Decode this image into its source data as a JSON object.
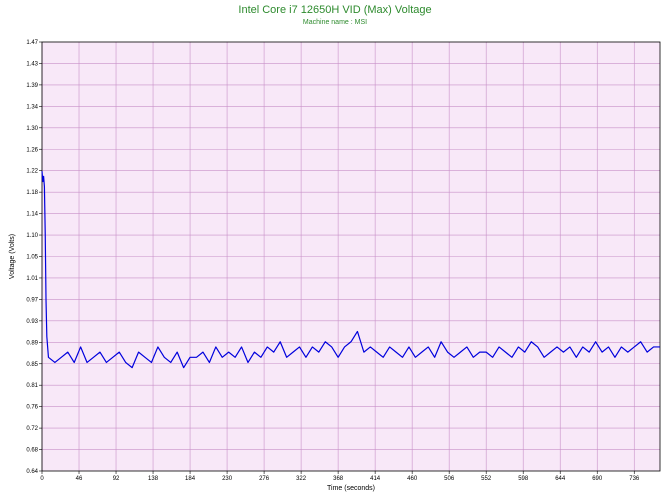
{
  "chart_data": {
    "type": "line",
    "title": "Intel Core i7 12650H VID (Max) Voltage",
    "subtitle": "Machine name : MSI",
    "xlabel": "Time (seconds)",
    "ylabel": "Voltage (Volts)",
    "xlim": [
      0,
      768
    ],
    "ylim": [
      0.64,
      1.47
    ],
    "x_ticks": [
      "0",
      "46",
      "92",
      "138",
      "184",
      "230",
      "276",
      "322",
      "368",
      "414",
      "460",
      "506",
      "552",
      "598",
      "644",
      "690",
      "736"
    ],
    "y_ticks": [
      "0.64",
      "0.68",
      "0.72",
      "0.76",
      "0.81",
      "0.85",
      "0.89",
      "0.93",
      "0.97",
      "1.01",
      "1.05",
      "1.10",
      "1.14",
      "1.18",
      "1.22",
      "1.26",
      "1.30",
      "1.34",
      "1.39",
      "1.43",
      "1.47"
    ],
    "grid": true,
    "colors": {
      "line": "#0000dd",
      "plot_bg": "#f8e8f8",
      "grid": "#c890c8",
      "title": "#2e8b2e"
    },
    "series": [
      {
        "sampling_interval_s": 8,
        "points": [
          [
            0,
            1.22
          ],
          [
            1,
            1.2
          ],
          [
            2,
            1.21
          ],
          [
            3,
            1.19
          ],
          [
            4,
            1.1
          ],
          [
            5,
            0.97
          ],
          [
            6,
            0.9
          ],
          [
            8,
            0.86
          ],
          [
            16,
            0.85
          ],
          [
            24,
            0.86
          ],
          [
            32,
            0.87
          ],
          [
            40,
            0.85
          ],
          [
            48,
            0.88
          ],
          [
            56,
            0.85
          ],
          [
            64,
            0.86
          ],
          [
            72,
            0.87
          ],
          [
            80,
            0.85
          ],
          [
            88,
            0.86
          ],
          [
            96,
            0.87
          ],
          [
            104,
            0.85
          ],
          [
            112,
            0.84
          ],
          [
            120,
            0.87
          ],
          [
            128,
            0.86
          ],
          [
            136,
            0.85
          ],
          [
            144,
            0.88
          ],
          [
            152,
            0.86
          ],
          [
            160,
            0.85
          ],
          [
            168,
            0.87
          ],
          [
            176,
            0.84
          ],
          [
            184,
            0.86
          ],
          [
            192,
            0.86
          ],
          [
            200,
            0.87
          ],
          [
            208,
            0.85
          ],
          [
            216,
            0.88
          ],
          [
            224,
            0.86
          ],
          [
            232,
            0.87
          ],
          [
            240,
            0.86
          ],
          [
            248,
            0.88
          ],
          [
            256,
            0.85
          ],
          [
            264,
            0.87
          ],
          [
            272,
            0.86
          ],
          [
            280,
            0.88
          ],
          [
            288,
            0.87
          ],
          [
            296,
            0.89
          ],
          [
            304,
            0.86
          ],
          [
            312,
            0.87
          ],
          [
            320,
            0.88
          ],
          [
            328,
            0.86
          ],
          [
            336,
            0.88
          ],
          [
            344,
            0.87
          ],
          [
            352,
            0.89
          ],
          [
            360,
            0.88
          ],
          [
            368,
            0.86
          ],
          [
            376,
            0.88
          ],
          [
            384,
            0.89
          ],
          [
            392,
            0.91
          ],
          [
            400,
            0.87
          ],
          [
            408,
            0.88
          ],
          [
            416,
            0.87
          ],
          [
            424,
            0.86
          ],
          [
            432,
            0.88
          ],
          [
            440,
            0.87
          ],
          [
            448,
            0.86
          ],
          [
            456,
            0.88
          ],
          [
            464,
            0.86
          ],
          [
            472,
            0.87
          ],
          [
            480,
            0.88
          ],
          [
            488,
            0.86
          ],
          [
            496,
            0.89
          ],
          [
            504,
            0.87
          ],
          [
            512,
            0.86
          ],
          [
            520,
            0.87
          ],
          [
            528,
            0.88
          ],
          [
            536,
            0.86
          ],
          [
            544,
            0.87
          ],
          [
            552,
            0.87
          ],
          [
            560,
            0.86
          ],
          [
            568,
            0.88
          ],
          [
            576,
            0.87
          ],
          [
            584,
            0.86
          ],
          [
            592,
            0.88
          ],
          [
            600,
            0.87
          ],
          [
            608,
            0.89
          ],
          [
            616,
            0.88
          ],
          [
            624,
            0.86
          ],
          [
            632,
            0.87
          ],
          [
            640,
            0.88
          ],
          [
            648,
            0.87
          ],
          [
            656,
            0.88
          ],
          [
            664,
            0.86
          ],
          [
            672,
            0.88
          ],
          [
            680,
            0.87
          ],
          [
            688,
            0.89
          ],
          [
            696,
            0.87
          ],
          [
            704,
            0.88
          ],
          [
            712,
            0.86
          ],
          [
            720,
            0.88
          ],
          [
            728,
            0.87
          ],
          [
            736,
            0.88
          ],
          [
            744,
            0.89
          ],
          [
            752,
            0.87
          ],
          [
            760,
            0.88
          ],
          [
            768,
            0.88
          ]
        ]
      }
    ]
  }
}
